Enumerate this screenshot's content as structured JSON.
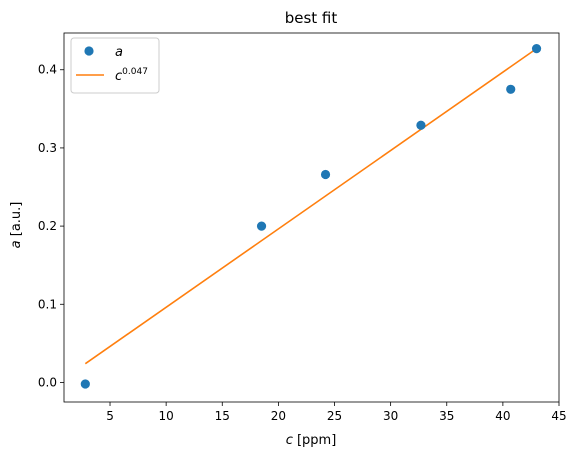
{
  "chart_data": {
    "type": "scatter",
    "title": "best fit",
    "xlabel": {
      "var": "c",
      "unit": " [ppm]"
    },
    "ylabel": {
      "var": "a",
      "unit": " [a.u.]"
    },
    "xlim": [
      0.9,
      45.0
    ],
    "ylim": [
      -0.025,
      0.447
    ],
    "xticks": [
      5,
      10,
      15,
      20,
      25,
      30,
      35,
      40,
      45
    ],
    "yticks": [
      0.0,
      0.1,
      0.2,
      0.3,
      0.4
    ],
    "ytick_labels": [
      "0.0",
      "0.1",
      "0.2",
      "0.3",
      "0.4"
    ],
    "legend_position": "upper-left",
    "series": [
      {
        "name": "a",
        "kind": "scatter",
        "color": "#1f77b4",
        "x": [
          2.8,
          18.5,
          24.2,
          32.7,
          40.7,
          43.0
        ],
        "y": [
          -0.002,
          0.2,
          0.266,
          0.329,
          0.375,
          0.427
        ]
      },
      {
        "name": "c",
        "name_exponent": "0.047",
        "kind": "line",
        "color": "#ff7f0e",
        "x": [
          2.8,
          43.0
        ],
        "y": [
          0.024,
          0.427
        ]
      }
    ]
  }
}
